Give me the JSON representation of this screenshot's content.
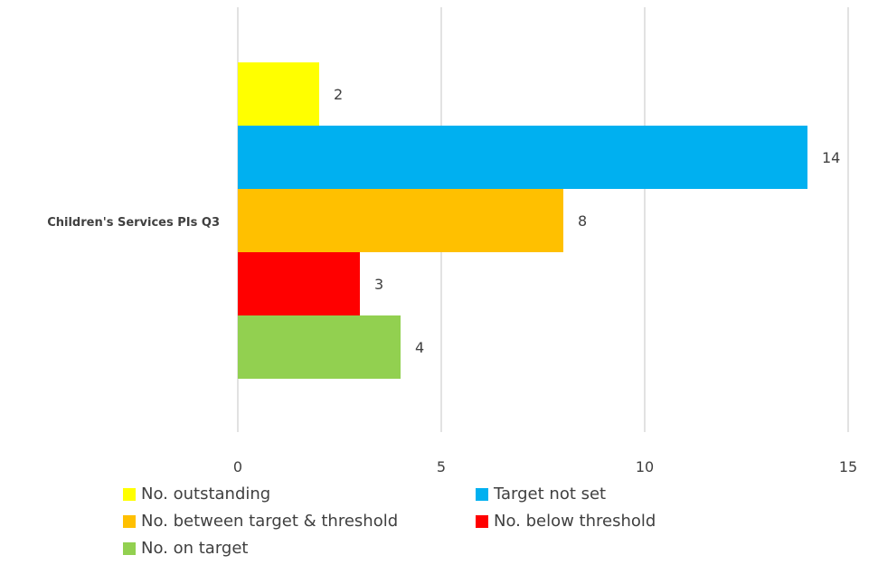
{
  "chart_data": {
    "type": "bar",
    "orientation": "horizontal",
    "categories": [
      "Children's Services PIs Q3"
    ],
    "series": [
      {
        "name": "No. outstanding",
        "values": [
          2
        ],
        "color": "#FFFF00"
      },
      {
        "name": "Target not set",
        "values": [
          14
        ],
        "color": "#00B0F0"
      },
      {
        "name": "No. between target & threshold",
        "values": [
          8
        ],
        "color": "#FFC000"
      },
      {
        "name": "No. below threshold",
        "values": [
          3
        ],
        "color": "#FF0000"
      },
      {
        "name": "No. on target",
        "values": [
          4
        ],
        "color": "#92D050"
      }
    ],
    "xlim": [
      0,
      15
    ],
    "x_ticks": [
      0,
      5,
      10,
      15
    ],
    "grid": true,
    "data_labels": true,
    "legend_position": "bottom"
  }
}
